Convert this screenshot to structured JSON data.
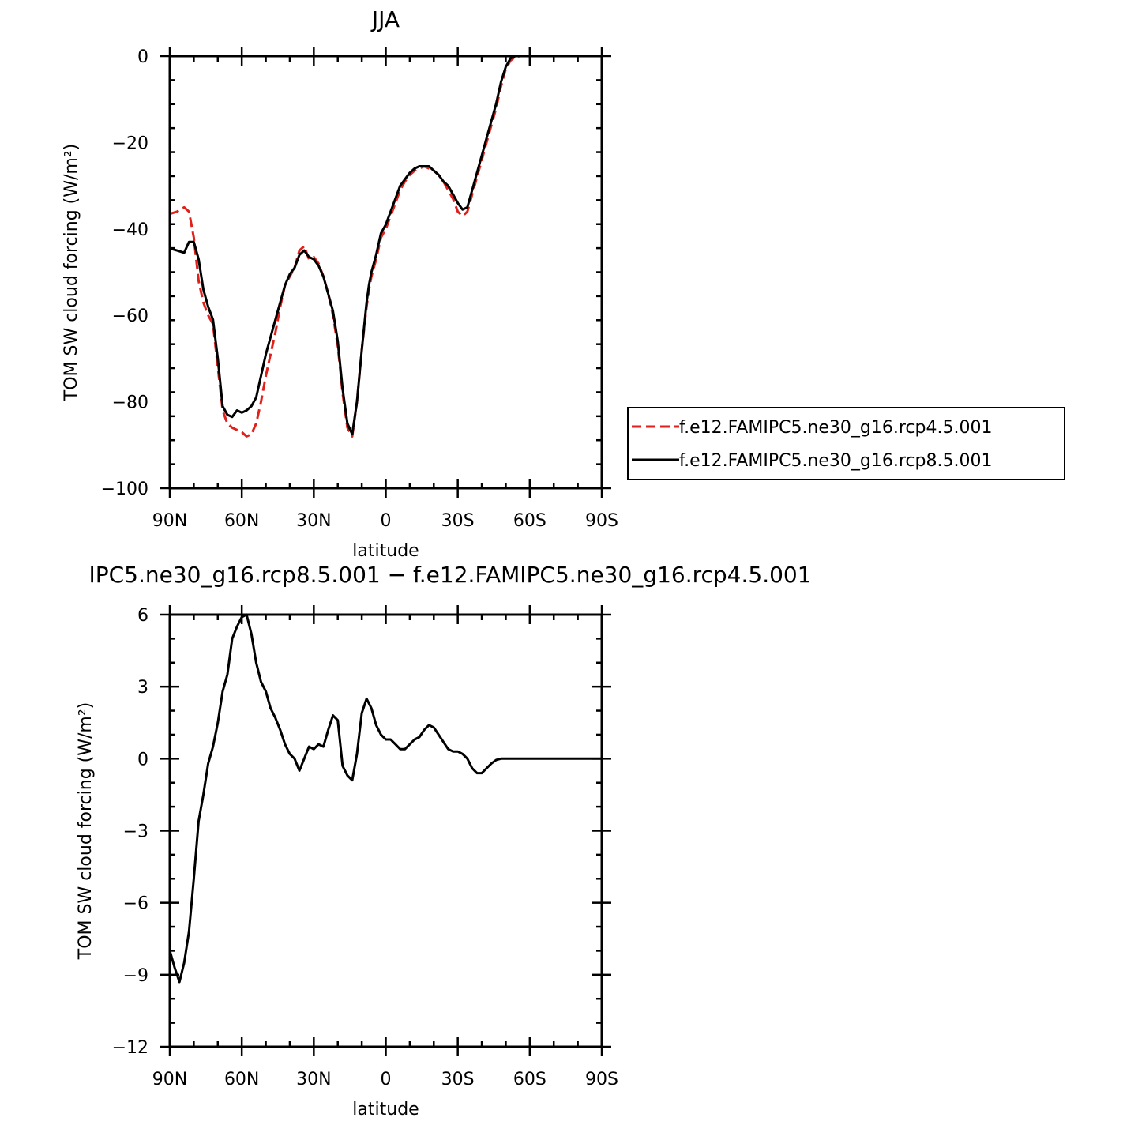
{
  "chart_data": [
    {
      "type": "line",
      "title": "JJA",
      "xlabel": "latitude",
      "ylabel": "TOM SW cloud forcing (W/m²)",
      "xlim": [
        90,
        -90
      ],
      "ylim": [
        -100,
        0
      ],
      "xticks": [
        90,
        60,
        30,
        0,
        -30,
        -60,
        -90
      ],
      "xtick_labels": [
        "90N",
        "60N",
        "30N",
        "0",
        "30S",
        "60S",
        "90S"
      ],
      "yticks": [
        0,
        -20,
        -40,
        -60,
        -80,
        -100
      ],
      "ytick_labels": [
        "0",
        "−20",
        "−40",
        "−60",
        "−80",
        "−100"
      ],
      "legend_position": "right",
      "grid": false,
      "series": [
        {
          "name": "f.e12.FAMIPC5.ne30_g16.rcp4.5.001",
          "color": "#e0201b",
          "style": "dashed",
          "x": [
            90,
            87,
            84,
            82,
            80,
            78,
            76,
            74,
            72,
            70,
            68,
            66,
            64,
            62,
            60,
            58,
            56,
            54,
            52,
            50,
            48,
            46,
            44,
            42,
            40,
            38,
            36,
            34,
            32,
            30,
            28,
            26,
            24,
            22,
            20,
            18,
            16,
            14,
            12,
            10,
            8,
            7,
            6,
            4,
            2,
            0,
            -2,
            -4,
            -6,
            -8,
            -10,
            -12,
            -14,
            -16,
            -18,
            -20,
            -22,
            -24,
            -26,
            -28,
            -30,
            -32,
            -34,
            -36,
            -38,
            -40,
            -42,
            -44,
            -46,
            -48,
            -50,
            -52,
            -54,
            -56,
            -58,
            -60,
            -62,
            -64,
            -66,
            -68,
            -70,
            -72,
            -75,
            -80,
            -85,
            -90
          ],
          "y": [
            -36.5,
            -36,
            -35,
            -36,
            -42,
            -52,
            -57,
            -60,
            -62,
            -72,
            -82,
            -85,
            -86,
            -86.5,
            -87,
            -88,
            -87.5,
            -85,
            -80,
            -74,
            -69,
            -64,
            -58,
            -53,
            -51,
            -49,
            -45,
            -44,
            -47,
            -46.5,
            -48,
            -51,
            -55,
            -60,
            -67,
            -78,
            -86,
            -88,
            -80,
            -68,
            -58,
            -54,
            -51,
            -47,
            -42,
            -40,
            -37,
            -34,
            -31,
            -29,
            -27.5,
            -26.5,
            -26,
            -25.5,
            -26,
            -26.5,
            -27.5,
            -29,
            -31,
            -33,
            -36,
            -37,
            -36,
            -32,
            -28,
            -24,
            -20,
            -16,
            -12,
            -7,
            -3,
            -1,
            -0.2,
            0,
            0,
            0,
            0,
            0,
            0,
            0,
            0,
            0,
            0,
            0,
            0,
            0
          ]
        },
        {
          "name": "f.e12.FAMIPC5.ne30_g16.rcp8.5.001",
          "color": "#000000",
          "style": "solid",
          "x": [
            90,
            87,
            84,
            82,
            80,
            78,
            76,
            74,
            72,
            70,
            68,
            66,
            64,
            62,
            60,
            58,
            56,
            54,
            52,
            50,
            48,
            46,
            44,
            42,
            40,
            38,
            36,
            34,
            32,
            30,
            28,
            26,
            24,
            22,
            20,
            18,
            16,
            14,
            12,
            10,
            8,
            7,
            6,
            4,
            2,
            0,
            -2,
            -4,
            -6,
            -8,
            -10,
            -12,
            -14,
            -16,
            -18,
            -20,
            -22,
            -24,
            -26,
            -28,
            -30,
            -32,
            -34,
            -36,
            -38,
            -40,
            -42,
            -44,
            -46,
            -48,
            -50,
            -52,
            -54,
            -56,
            -58,
            -60,
            -62,
            -64,
            -66,
            -68,
            -70,
            -72,
            -75,
            -80,
            -85,
            -90
          ],
          "y": [
            -44.5,
            -45,
            -45.5,
            -43,
            -43,
            -47,
            -54,
            -58,
            -61,
            -70,
            -81,
            -83,
            -83.5,
            -82,
            -82.5,
            -82,
            -81,
            -79,
            -74,
            -69,
            -65,
            -61,
            -57,
            -53,
            -50.5,
            -49,
            -46,
            -45,
            -46.5,
            -47,
            -48.5,
            -51,
            -55,
            -59,
            -66,
            -77,
            -85,
            -87.5,
            -80,
            -68,
            -57,
            -53,
            -50,
            -46,
            -41,
            -39,
            -36,
            -33,
            -30,
            -28.5,
            -27,
            -26,
            -25.5,
            -25.5,
            -25.5,
            -26.5,
            -27.5,
            -29,
            -30,
            -32,
            -34,
            -35.5,
            -35,
            -31,
            -27,
            -23,
            -19,
            -15,
            -11,
            -6,
            -2.5,
            -0.5,
            0,
            0,
            0,
            0,
            0,
            0,
            0,
            0,
            0,
            0,
            0,
            0,
            0,
            0
          ]
        }
      ]
    },
    {
      "type": "line",
      "title": "IPC5.ne30_g16.rcp8.5.001 − f.e12.FAMIPC5.ne30_g16.rcp4.5.001",
      "xlabel": "latitude",
      "ylabel": "TOM SW cloud forcing (W/m²)",
      "xlim": [
        90,
        -90
      ],
      "ylim": [
        -12,
        6
      ],
      "xticks": [
        90,
        60,
        30,
        0,
        -30,
        -60,
        -90
      ],
      "xtick_labels": [
        "90N",
        "60N",
        "30N",
        "0",
        "30S",
        "60S",
        "90S"
      ],
      "yticks": [
        6,
        3,
        0,
        -3,
        -6,
        -9,
        -12
      ],
      "ytick_labels": [
        "6",
        "3",
        "0",
        "−3",
        "−6",
        "−9",
        "−12"
      ],
      "grid": false,
      "series": [
        {
          "color": "#000000",
          "style": "solid",
          "x": [
            90,
            88,
            86,
            84,
            82,
            80,
            78,
            76,
            74,
            72,
            70,
            68,
            66,
            64,
            62,
            60,
            58,
            56,
            54,
            52,
            50,
            48,
            46,
            44,
            42,
            40,
            38,
            36,
            34,
            32,
            30,
            28,
            26,
            24,
            22,
            20,
            18,
            16,
            14,
            12,
            10,
            8,
            6,
            4,
            2,
            0,
            -2,
            -4,
            -6,
            -8,
            -10,
            -12,
            -14,
            -16,
            -18,
            -20,
            -22,
            -24,
            -26,
            -28,
            -30,
            -32,
            -34,
            -36,
            -38,
            -40,
            -42,
            -44,
            -46,
            -48,
            -50,
            -52,
            -54,
            -56,
            -58,
            -60,
            -62,
            -64,
            -66,
            -68,
            -70,
            -75,
            -80,
            -85,
            -90
          ],
          "y": [
            -8,
            -8.7,
            -9.3,
            -8.5,
            -7.2,
            -5,
            -2.6,
            -1.5,
            -0.2,
            0.5,
            1.5,
            2.8,
            3.5,
            5,
            5.5,
            5.9,
            6,
            5.2,
            4,
            3.2,
            2.8,
            2.1,
            1.7,
            1.2,
            0.6,
            0.2,
            0,
            -0.5,
            0,
            0.5,
            0.4,
            0.6,
            0.5,
            1.2,
            1.8,
            1.6,
            -0.3,
            -0.7,
            -0.9,
            0.2,
            1.9,
            2.5,
            2.1,
            1.4,
            1.0,
            0.8,
            0.8,
            0.6,
            0.4,
            0.4,
            0.6,
            0.8,
            0.9,
            1.2,
            1.4,
            1.3,
            1.0,
            0.7,
            0.4,
            0.3,
            0.3,
            0.2,
            0,
            -0.4,
            -0.6,
            -0.6,
            -0.4,
            -0.2,
            -0.05,
            0,
            0,
            0,
            0,
            0,
            0,
            0,
            0,
            0,
            0,
            0,
            0,
            0,
            0,
            0,
            0
          ]
        }
      ]
    }
  ]
}
